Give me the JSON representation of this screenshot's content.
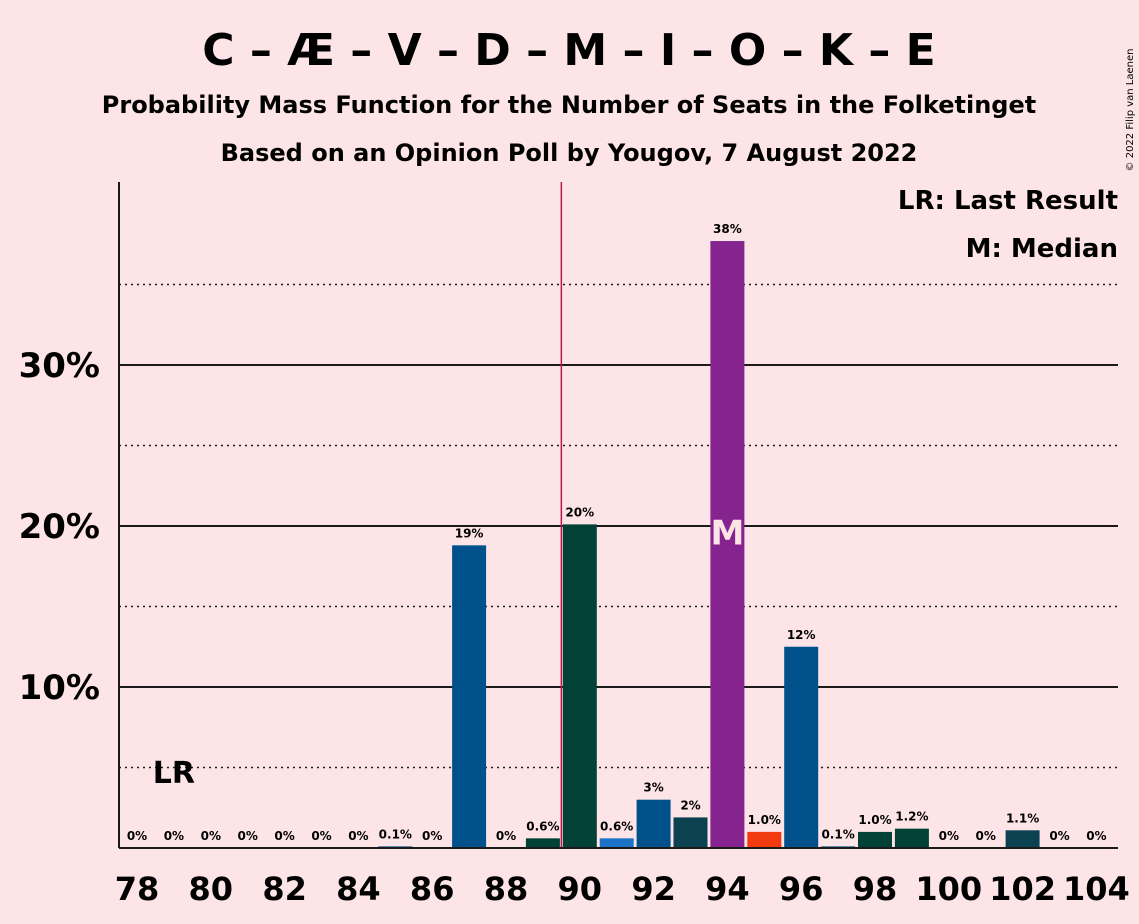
{
  "chart_data": {
    "type": "bar",
    "title": "C – Æ – V – D – M – I – O – K – E",
    "subtitle": "Probability Mass Function for the Number of Seats in the Folketinget",
    "subtitle2": "Based on an Opinion Poll by Yougov, 7 August 2022",
    "copyright": "© 2022 Filip van Laenen",
    "legend": {
      "lr": "LR: Last Result",
      "median": "M: Median",
      "placement": "top-right"
    },
    "lr_label": "LR",
    "median_label": "M",
    "last_result_seat": 79,
    "median_seat": 94,
    "majority_line_seat": 89.5,
    "ylim": [
      0,
      41
    ],
    "yticks": [
      {
        "value": 10,
        "label": "10%"
      },
      {
        "value": 20,
        "label": "20%"
      },
      {
        "value": 30,
        "label": "30%"
      }
    ],
    "ygrid_dotted": [
      5,
      15,
      25,
      35
    ],
    "xticks": [
      78,
      80,
      82,
      84,
      86,
      88,
      90,
      92,
      94,
      96,
      98,
      100,
      102,
      104
    ],
    "bars": [
      {
        "seat": 78,
        "value": 0,
        "label": "0%",
        "color": "#00508c"
      },
      {
        "seat": 79,
        "value": 0,
        "label": "0%",
        "color": "#00508c"
      },
      {
        "seat": 80,
        "value": 0,
        "label": "0%",
        "color": "#00508c"
      },
      {
        "seat": 81,
        "value": 0,
        "label": "0%",
        "color": "#00508c"
      },
      {
        "seat": 82,
        "value": 0,
        "label": "0%",
        "color": "#00508c"
      },
      {
        "seat": 83,
        "value": 0,
        "label": "0%",
        "color": "#00508c"
      },
      {
        "seat": 84,
        "value": 0,
        "label": "0%",
        "color": "#00508c"
      },
      {
        "seat": 85,
        "value": 0.1,
        "label": "0.1%",
        "color": "#00508c"
      },
      {
        "seat": 86,
        "value": 0,
        "label": "0%",
        "color": "#00508c"
      },
      {
        "seat": 87,
        "value": 18.8,
        "label": "19%",
        "color": "#00508c"
      },
      {
        "seat": 88,
        "value": 0,
        "label": "0%",
        "color": "#00508c"
      },
      {
        "seat": 89,
        "value": 0.6,
        "label": "0.6%",
        "color": "#024135"
      },
      {
        "seat": 90,
        "value": 20.1,
        "label": "20%",
        "color": "#024135"
      },
      {
        "seat": 91,
        "value": 0.6,
        "label": "0.6%",
        "color": "#1b73c8"
      },
      {
        "seat": 92,
        "value": 3.0,
        "label": "3%",
        "color": "#00508c"
      },
      {
        "seat": 93,
        "value": 1.9,
        "label": "2%",
        "color": "#0c4152"
      },
      {
        "seat": 94,
        "value": 37.7,
        "label": "38%",
        "color": "#85248e"
      },
      {
        "seat": 95,
        "value": 1.0,
        "label": "1.0%",
        "color": "#f23a10"
      },
      {
        "seat": 96,
        "value": 12.5,
        "label": "12%",
        "color": "#00508c"
      },
      {
        "seat": 97,
        "value": 0.1,
        "label": "0.1%",
        "color": "#00508c"
      },
      {
        "seat": 98,
        "value": 1.0,
        "label": "1.0%",
        "color": "#024135"
      },
      {
        "seat": 99,
        "value": 1.2,
        "label": "1.2%",
        "color": "#024135"
      },
      {
        "seat": 100,
        "value": 0,
        "label": "0%",
        "color": "#024135"
      },
      {
        "seat": 101,
        "value": 0,
        "label": "0%",
        "color": "#024135"
      },
      {
        "seat": 102,
        "value": 1.1,
        "label": "1.1%",
        "color": "#0c4152"
      },
      {
        "seat": 103,
        "value": 0,
        "label": "0%",
        "color": "#0c4152"
      },
      {
        "seat": 104,
        "value": 0,
        "label": "0%",
        "color": "#0c4152"
      }
    ],
    "colors": {
      "background": "#fde4e7",
      "majority_line": "#c0144c",
      "axis": "#1a1a1a"
    }
  }
}
